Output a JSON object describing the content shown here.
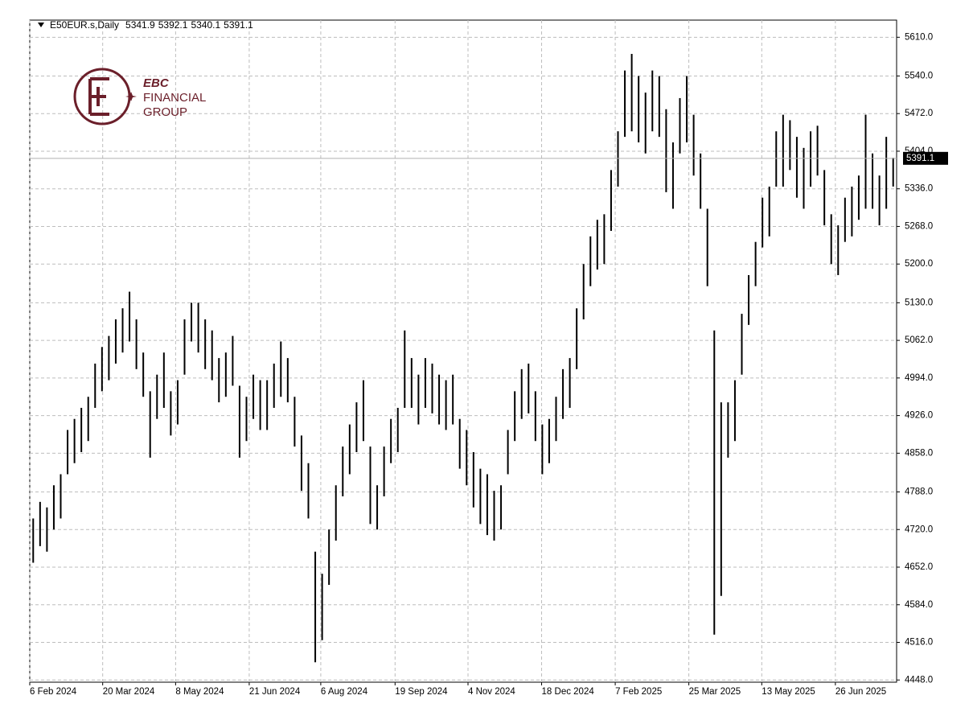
{
  "chart_data": {
    "type": "ohlc",
    "title": "E50EUR.s,Daily",
    "ohlc": [
      5341.9,
      5392.1,
      5340.1,
      5391.1
    ],
    "logo": {
      "name": "EBC",
      "line1": "FINANCIAL",
      "line2": "GROUP"
    },
    "color": "#000000",
    "grid": true,
    "xlim": [
      0,
      126
    ],
    "xticks": [
      {
        "value": 0,
        "label": "6 Feb 2024"
      },
      {
        "value": 10.6,
        "label": "20 Mar 2024"
      },
      {
        "value": 21.2,
        "label": "8 May 2024"
      },
      {
        "value": 31.9,
        "label": "21 Jun 2024"
      },
      {
        "value": 42.3,
        "label": "6 Aug 2024"
      },
      {
        "value": 53.1,
        "label": "19 Sep 2024"
      },
      {
        "value": 63.7,
        "label": "4 Nov 2024"
      },
      {
        "value": 74.4,
        "label": "18 Dec 2024"
      },
      {
        "value": 85.1,
        "label": "7 Feb 2025"
      },
      {
        "value": 95.8,
        "label": "25 Mar 2025"
      },
      {
        "value": 106.4,
        "label": "13 May 2025"
      },
      {
        "value": 117.1,
        "label": "26 Jun 2025"
      }
    ],
    "ylim": [
      4444,
      5641
    ],
    "yticks": [
      {
        "value": 5610,
        "label": "5610.0"
      },
      {
        "value": 5540,
        "label": "5540.0"
      },
      {
        "value": 5472,
        "label": "5472.0"
      },
      {
        "value": 5404,
        "label": "5404.0"
      },
      {
        "value": 5336,
        "label": "5336.0"
      },
      {
        "value": 5268,
        "label": "5268.0"
      },
      {
        "value": 5200,
        "label": "5200.0"
      },
      {
        "value": 5130,
        "label": "5130.0"
      },
      {
        "value": 5062,
        "label": "5062.0"
      },
      {
        "value": 4994,
        "label": "4994.0"
      },
      {
        "value": 4926,
        "label": "4926.0"
      },
      {
        "value": 4858,
        "label": "4858.0"
      },
      {
        "value": 4788,
        "label": "4788.0"
      },
      {
        "value": 4720,
        "label": "4720.0"
      },
      {
        "value": 4652,
        "label": "4652.0"
      },
      {
        "value": 4584,
        "label": "4584.0"
      },
      {
        "value": 4516,
        "label": "4516.0"
      },
      {
        "value": 4448,
        "label": "4448.0"
      }
    ],
    "high": [
      4740,
      4770,
      4760,
      4800,
      4820,
      4900,
      4920,
      4940,
      4960,
      5020,
      5050,
      5070,
      5100,
      5120,
      5150,
      5100,
      5040,
      4970,
      5000,
      5040,
      4970,
      4990,
      5100,
      5130,
      5130,
      5100,
      5080,
      5030,
      5040,
      5070,
      4980,
      4960,
      5000,
      4990,
      4990,
      5020,
      5060,
      5030,
      4960,
      4890,
      4840,
      4680,
      4640,
      4720,
      4800,
      4870,
      4910,
      4950,
      4990,
      4870,
      4800,
      4870,
      4920,
      4940,
      5080,
      5030,
      5000,
      5030,
      5020,
      5000,
      4990,
      5000,
      4920,
      4900,
      4860,
      4830,
      4820,
      4790,
      4800,
      4900,
      4970,
      5010,
      5020,
      4970,
      4910,
      4920,
      4960,
      5010,
      5030,
      5120,
      5200,
      5250,
      5280,
      5290,
      5370,
      5440,
      5550,
      5580,
      5540,
      5510,
      5550,
      5540,
      5480,
      5420,
      5500,
      5540,
      5470,
      5400,
      5300,
      5080,
      4950,
      4950,
      4990,
      5110,
      5180,
      5240,
      5320,
      5340,
      5440,
      5470,
      5460,
      5430,
      5410,
      5440,
      5450,
      5370,
      5290,
      5270,
      5320,
      5340,
      5360,
      5470,
      5400,
      5360,
      5430,
      5392.1
    ],
    "low": [
      4660,
      4690,
      4680,
      4720,
      4740,
      4820,
      4840,
      4860,
      4880,
      4940,
      4970,
      4990,
      5020,
      5040,
      5060,
      5010,
      4960,
      4850,
      4920,
      4940,
      4890,
      4910,
      5000,
      5060,
      5040,
      5010,
      4990,
      4950,
      4960,
      4980,
      4850,
      4880,
      4920,
      4900,
      4900,
      4940,
      4960,
      4950,
      4870,
      4790,
      4740,
      4480,
      4520,
      4620,
      4700,
      4780,
      4820,
      4860,
      4880,
      4730,
      4720,
      4780,
      4840,
      4860,
      4940,
      4940,
      4910,
      4940,
      4930,
      4910,
      4900,
      4910,
      4830,
      4800,
      4760,
      4730,
      4710,
      4700,
      4720,
      4820,
      4880,
      4920,
      4930,
      4880,
      4820,
      4840,
      4880,
      4920,
      4940,
      5010,
      5100,
      5160,
      5190,
      5200,
      5260,
      5340,
      5430,
      5440,
      5420,
      5400,
      5440,
      5430,
      5330,
      5300,
      5400,
      5420,
      5360,
      5300,
      5160,
      4530,
      4600,
      4850,
      4880,
      5000,
      5090,
      5160,
      5230,
      5250,
      5340,
      5340,
      5370,
      5320,
      5300,
      5340,
      5360,
      5270,
      5200,
      5180,
      5240,
      5250,
      5280,
      5300,
      5300,
      5270,
      5300,
      5340.1
    ]
  }
}
